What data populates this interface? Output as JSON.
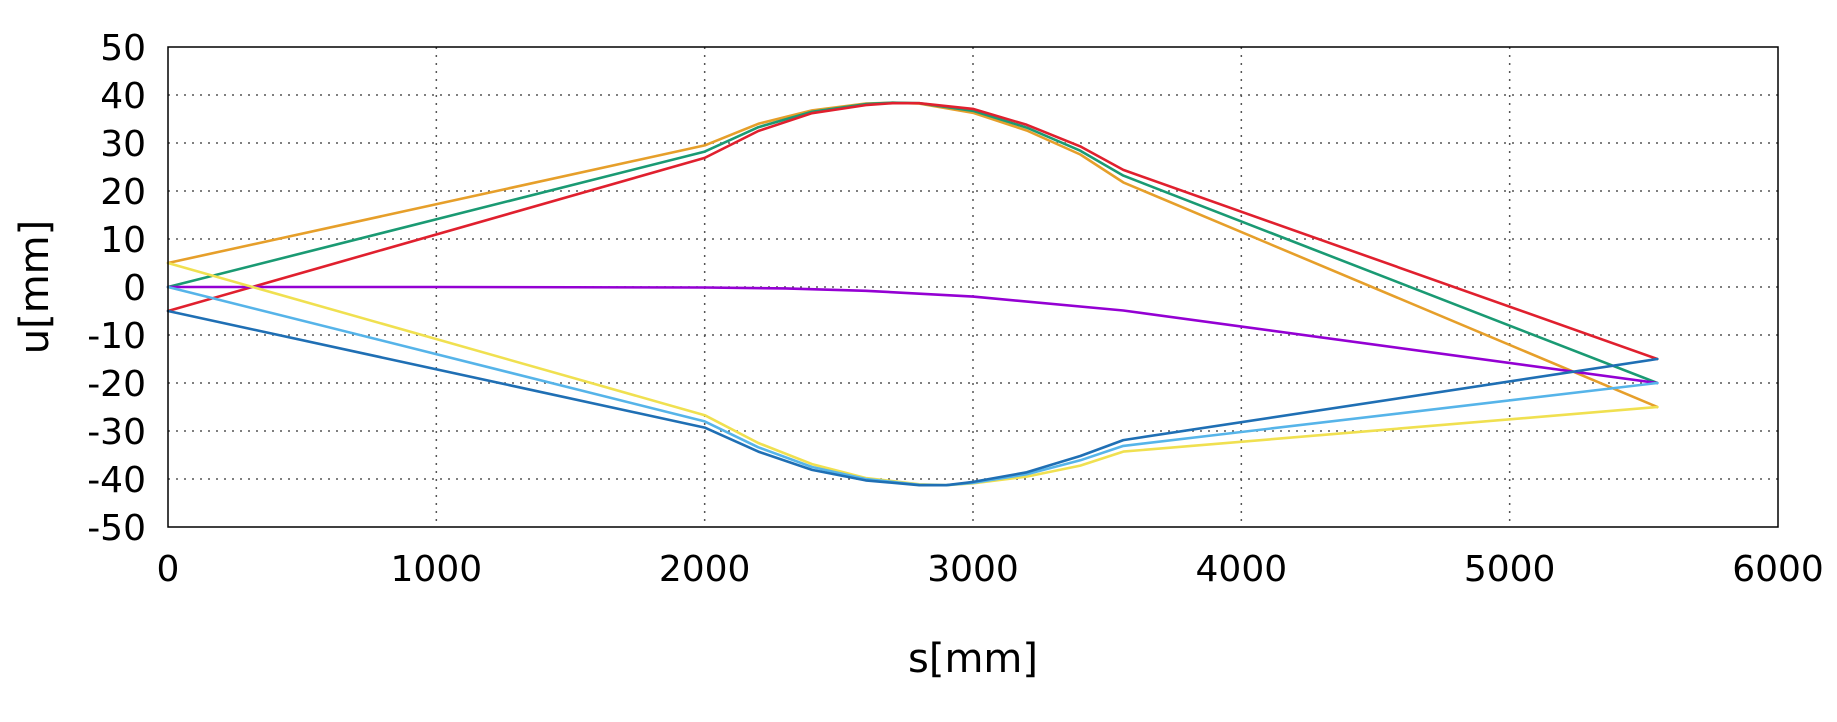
{
  "chart_data": {
    "type": "line",
    "xlabel": "s[mm]",
    "ylabel": "u[mm]",
    "xlim": [
      0,
      6000
    ],
    "ylim": [
      -50,
      50
    ],
    "xticks": [
      0,
      1000,
      2000,
      3000,
      4000,
      5000,
      6000
    ],
    "yticks": [
      -50,
      -40,
      -30,
      -20,
      -10,
      0,
      10,
      20,
      30,
      40,
      50
    ],
    "grid": true,
    "series": [
      {
        "color": "#e69f2a",
        "points": [
          [
            0,
            5
          ],
          [
            2000,
            29.5
          ],
          [
            2200,
            34
          ],
          [
            2400,
            36.8
          ],
          [
            2600,
            38.2
          ],
          [
            2700,
            38.4
          ],
          [
            2800,
            38.2
          ],
          [
            3000,
            36.3
          ],
          [
            3200,
            32.6
          ],
          [
            3400,
            27.6
          ],
          [
            3560,
            21.8
          ],
          [
            5550,
            -25
          ]
        ]
      },
      {
        "color": "#1a9a73",
        "points": [
          [
            0,
            0
          ],
          [
            2000,
            28.2
          ],
          [
            2200,
            33.3
          ],
          [
            2400,
            36.5
          ],
          [
            2600,
            38.1
          ],
          [
            2700,
            38.4
          ],
          [
            2800,
            38.3
          ],
          [
            3000,
            36.7
          ],
          [
            3200,
            33.2
          ],
          [
            3400,
            28.4
          ],
          [
            3560,
            23.2
          ],
          [
            5550,
            -20
          ]
        ]
      },
      {
        "color": "#e0202e",
        "points": [
          [
            0,
            -5
          ],
          [
            2000,
            26.9
          ],
          [
            2200,
            32.5
          ],
          [
            2400,
            36.2
          ],
          [
            2600,
            37.9
          ],
          [
            2700,
            38.3
          ],
          [
            2800,
            38.3
          ],
          [
            3000,
            37.1
          ],
          [
            3200,
            33.8
          ],
          [
            3400,
            29.3
          ],
          [
            3560,
            24.4
          ],
          [
            5550,
            -15
          ]
        ]
      },
      {
        "color": "#9400d3",
        "points": [
          [
            0,
            0
          ],
          [
            1000,
            0
          ],
          [
            2000,
            -0.1
          ],
          [
            2300,
            -0.3
          ],
          [
            2600,
            -0.8
          ],
          [
            3000,
            -2.0
          ],
          [
            3560,
            -4.9
          ],
          [
            5550,
            -20
          ]
        ]
      },
      {
        "color": "#f0e050",
        "points": [
          [
            0,
            5
          ],
          [
            2000,
            -26.7
          ],
          [
            2200,
            -32.5
          ],
          [
            2400,
            -36.9
          ],
          [
            2600,
            -39.8
          ],
          [
            2800,
            -41.1
          ],
          [
            2900,
            -41.3
          ],
          [
            3000,
            -40.9
          ],
          [
            3200,
            -39.5
          ],
          [
            3400,
            -37.2
          ],
          [
            3560,
            -34.3
          ],
          [
            5550,
            -25
          ]
        ]
      },
      {
        "color": "#56b4e9",
        "points": [
          [
            0,
            0
          ],
          [
            2000,
            -28.0
          ],
          [
            2200,
            -33.4
          ],
          [
            2400,
            -37.5
          ],
          [
            2600,
            -40.0
          ],
          [
            2800,
            -41.2
          ],
          [
            2900,
            -41.3
          ],
          [
            3000,
            -40.8
          ],
          [
            3200,
            -39.0
          ],
          [
            3400,
            -36.1
          ],
          [
            3560,
            -33.1
          ],
          [
            5550,
            -20
          ]
        ]
      },
      {
        "color": "#1f6fb4",
        "points": [
          [
            0,
            -5
          ],
          [
            2000,
            -29.3
          ],
          [
            2200,
            -34.3
          ],
          [
            2400,
            -38.1
          ],
          [
            2600,
            -40.3
          ],
          [
            2800,
            -41.3
          ],
          [
            2900,
            -41.3
          ],
          [
            3000,
            -40.6
          ],
          [
            3200,
            -38.6
          ],
          [
            3400,
            -35.2
          ],
          [
            3560,
            -31.9
          ],
          [
            5550,
            -15
          ]
        ]
      }
    ]
  }
}
